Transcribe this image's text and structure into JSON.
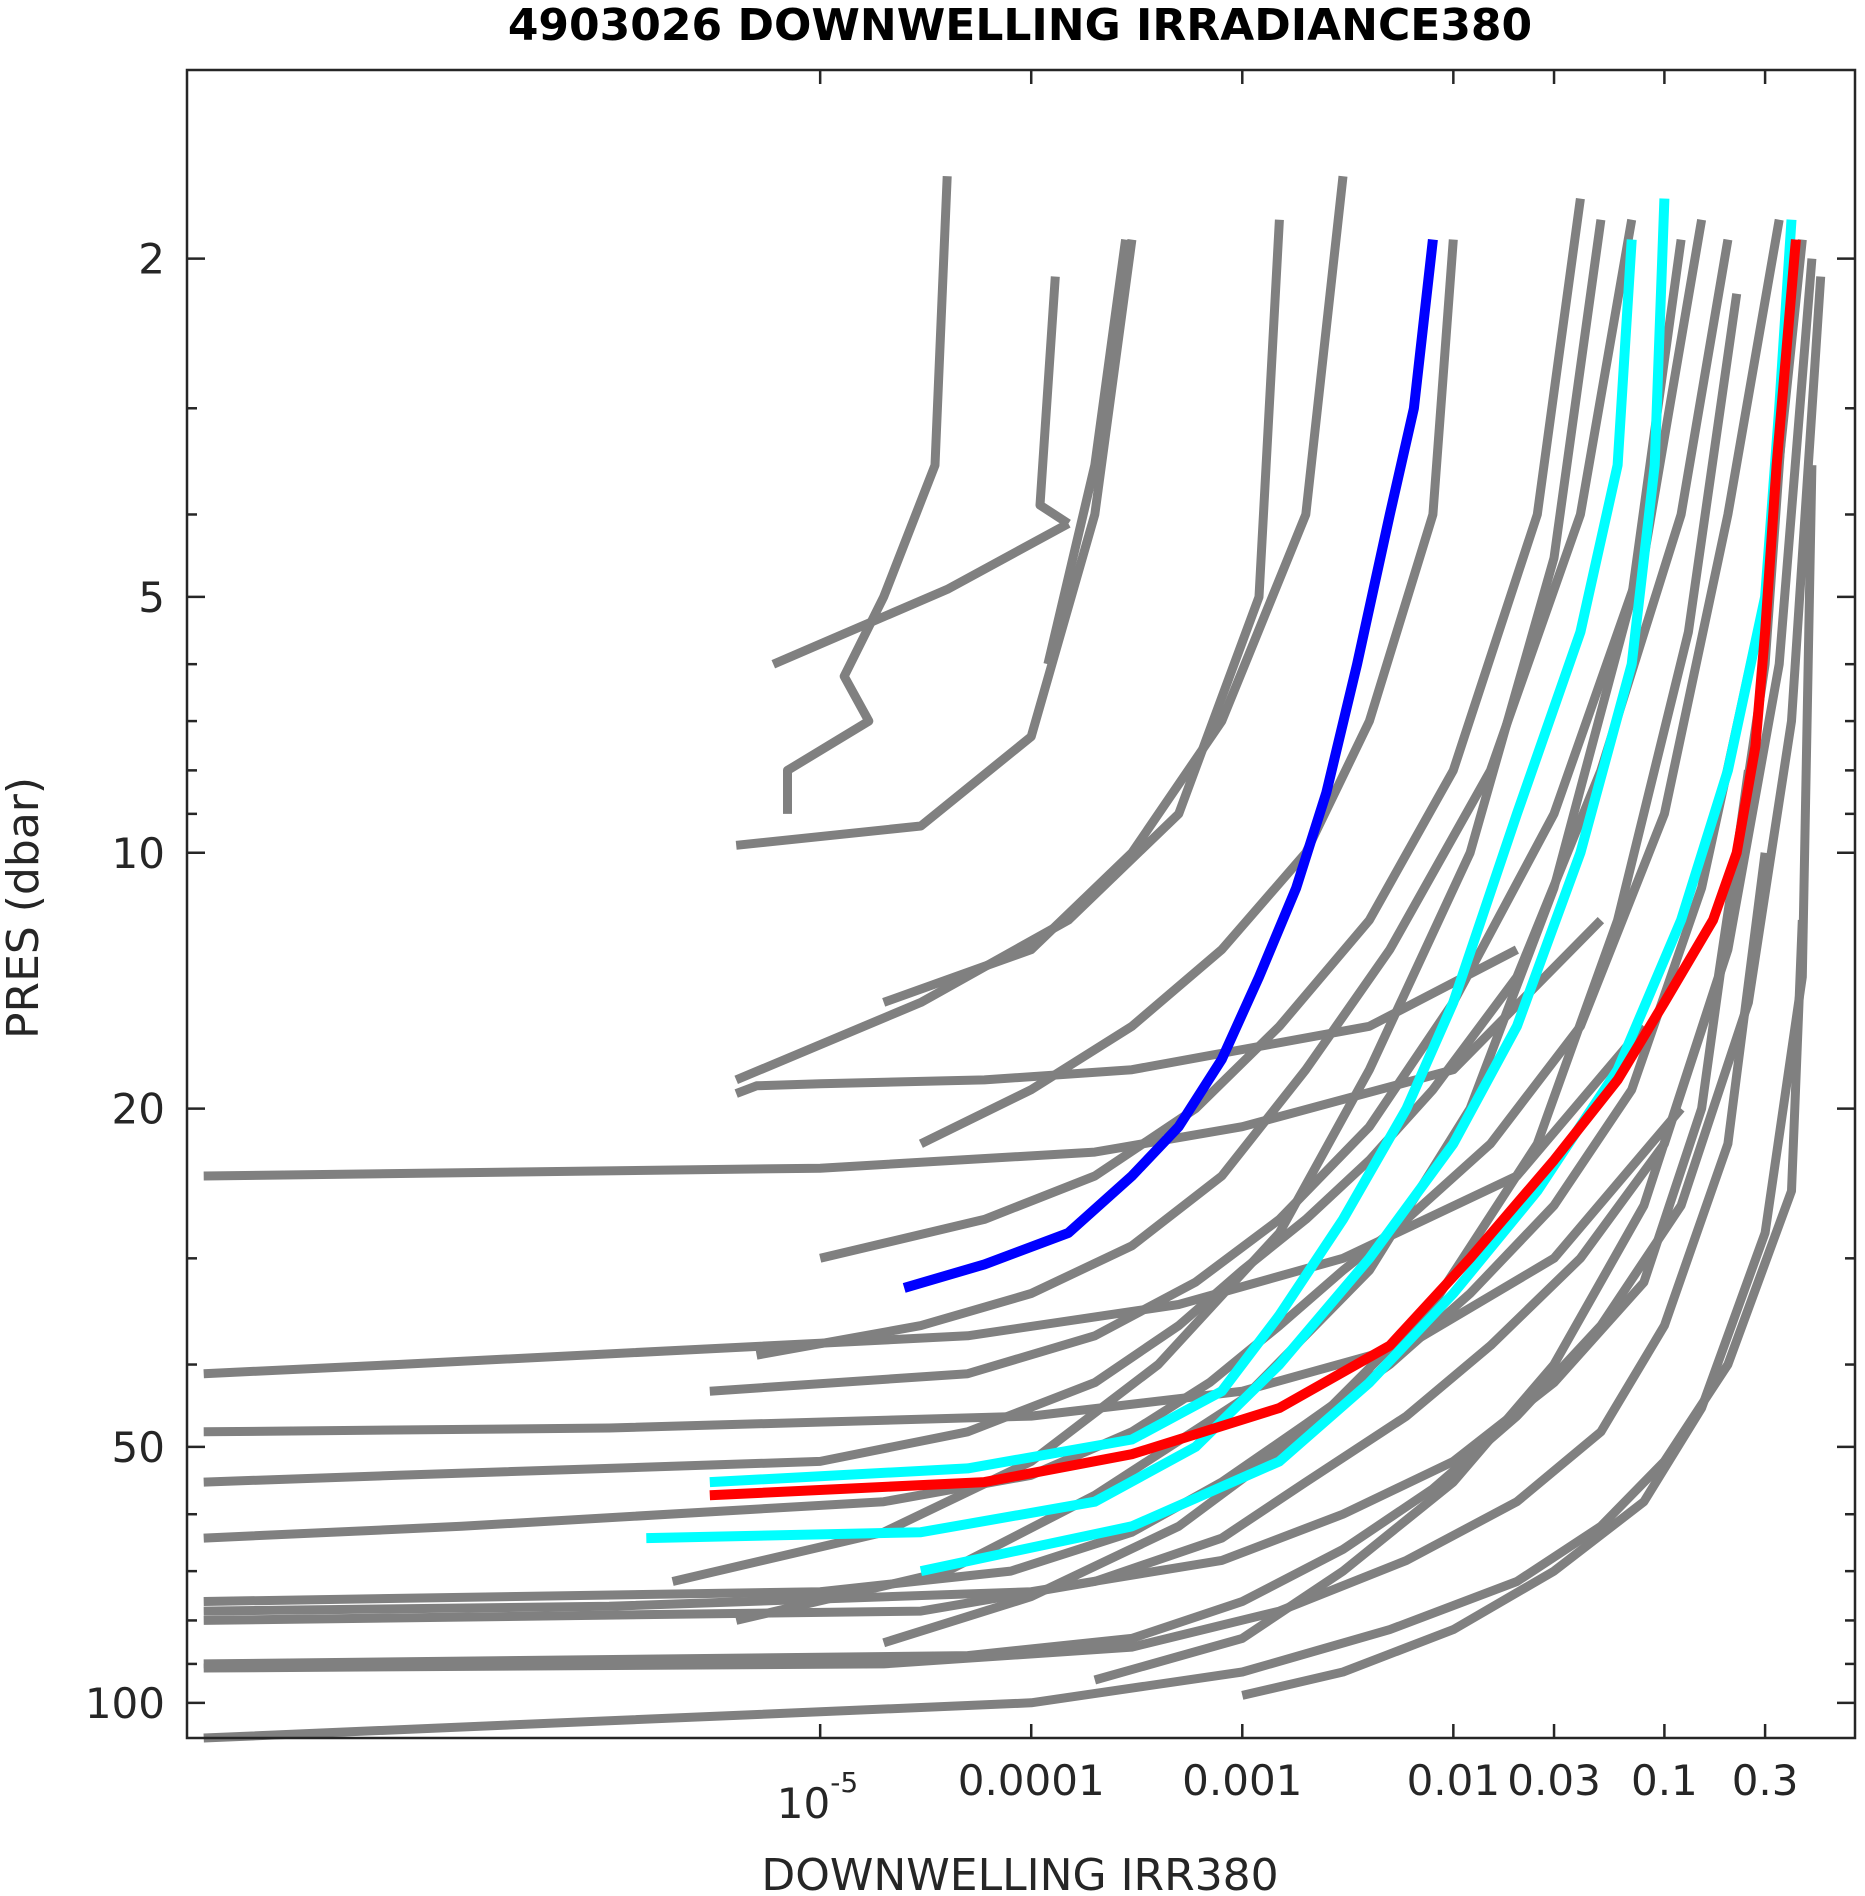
{
  "chart_data": {
    "type": "line",
    "title": "4903026  DOWNWELLING IRRADIANCE380",
    "xlabel": "DOWNWELLING IRR380",
    "ylabel": "PRES (dbar)",
    "xscale": "log",
    "yscale": "log",
    "yreversed": true,
    "xlim": [
      1e-08,
      0.8
    ],
    "ylim": [
      1.2,
      110
    ],
    "xticks": [
      {
        "value": 1e-05,
        "label": "10-5"
      },
      {
        "value": 0.0001,
        "label": "0.0001"
      },
      {
        "value": 0.001,
        "label": "0.001"
      },
      {
        "value": 0.01,
        "label": "0.01"
      },
      {
        "value": 0.03,
        "label": "0.03"
      },
      {
        "value": 0.1,
        "label": "0.1"
      },
      {
        "value": 0.3,
        "label": "0.3"
      }
    ],
    "yticks": [
      {
        "value": 2,
        "label": "2"
      },
      {
        "value": 5,
        "label": "5"
      },
      {
        "value": 10,
        "label": "10"
      },
      {
        "value": 20,
        "label": "20"
      },
      {
        "value": 50,
        "label": "50"
      },
      {
        "value": 100,
        "label": "100"
      }
    ],
    "grid": false,
    "legend": "none",
    "colors": {
      "background": "#ffffff",
      "gray": "#808080",
      "blue": "#0000ff",
      "cyan": "#00ffff",
      "red": "#ff0000",
      "axis": "#262626"
    },
    "gray_series": [
      {
        "x": [
          0.2,
          0.12,
          0.05,
          0.02,
          0.008,
          0.004,
          0.002,
          0.001,
          0.0005,
          0.0002,
          5e-05,
          1e-05,
          1e-07,
          1.2e-08
        ],
        "y": [
          1.9,
          4,
          8,
          14,
          19,
          23,
          27,
          31,
          36,
          42,
          48,
          52,
          54,
          55
        ]
      },
      {
        "x": [
          0.35,
          0.2,
          0.1,
          0.04,
          0.015,
          0.006,
          0.003,
          0.0015,
          0.0007,
          0.0003,
          0.0001,
          2e-05,
          2e-07,
          1.2e-08
        ],
        "y": [
          1.8,
          4,
          9,
          16,
          22,
          27,
          31,
          36,
          42,
          48,
          54,
          58,
          62,
          64
        ]
      },
      {
        "x": [
          0.45,
          0.3,
          0.15,
          0.07,
          0.03,
          0.012,
          0.005,
          0.002,
          0.0008,
          0.0003,
          8e-05,
          1e-05,
          1.2e-08
        ],
        "y": [
          1.9,
          5,
          11,
          19,
          26,
          33,
          40,
          47,
          55,
          63,
          70,
          74,
          76
        ]
      },
      {
        "x": [
          0.5,
          0.35,
          0.2,
          0.1,
          0.04,
          0.015,
          0.006,
          0.002,
          0.0008,
          0.0002,
          3e-05,
          1.2e-08
        ],
        "y": [
          2,
          6,
          13,
          22,
          30,
          38,
          46,
          55,
          64,
          72,
          78,
          80
        ]
      },
      {
        "x": [
          0.55,
          0.4,
          0.25,
          0.12,
          0.05,
          0.02,
          0.008,
          0.003,
          0.001,
          0.0003,
          5e-05,
          1.2e-08
        ],
        "y": [
          2.1,
          7,
          15,
          26,
          36,
          46,
          56,
          66,
          76,
          84,
          88,
          90
        ]
      },
      {
        "x": [
          0.15,
          0.08,
          0.03,
          0.01,
          0.004,
          0.0015,
          0.0006,
          0.0002,
          5e-05,
          3e-06
        ],
        "y": [
          1.8,
          4.5,
          9,
          15,
          21,
          27,
          32,
          37,
          41,
          43
        ]
      },
      {
        "x": [
          0.07,
          0.04,
          0.015,
          0.005,
          0.002,
          0.0008,
          0.0003,
          0.0001,
          3e-05,
          5e-06
        ],
        "y": [
          1.8,
          4,
          8,
          13,
          18,
          24,
          29,
          33,
          36,
          39
        ]
      },
      {
        "x": [
          0.04,
          0.025,
          0.01,
          0.004,
          0.0015,
          0.0006,
          0.0002,
          6e-05,
          1e-05
        ],
        "y": [
          1.7,
          4,
          8,
          12,
          16,
          20,
          24,
          27,
          30
        ]
      },
      {
        "x": [
          0.01,
          0.008,
          0.004,
          0.002,
          0.0008,
          0.0003,
          0.0001,
          3e-05
        ],
        "y": [
          1.9,
          4,
          7,
          10,
          13,
          16,
          19,
          22
        ]
      },
      {
        "x": [
          0.003,
          0.002,
          0.0008,
          0.0003,
          0.0001,
          2e-05
        ],
        "y": [
          1.6,
          4,
          7,
          10,
          13,
          15
        ]
      },
      {
        "x": [
          0.0015,
          0.0012,
          0.0005,
          0.00015,
          3e-05,
          4e-06
        ],
        "y": [
          1.8,
          5,
          9,
          12,
          15,
          18.5
        ]
      },
      {
        "x": [
          0.0003,
          0.0002,
          0.0001,
          3e-05,
          4e-06
        ],
        "y": [
          1.9,
          4,
          7.3,
          9.3,
          9.8
        ]
      },
      {
        "x": [
          0.00028,
          0.0002,
          0.00012
        ],
        "y": [
          1.9,
          3.5,
          6
        ]
      },
      {
        "x": [
          0.00013,
          0.00011,
          0.00015
        ],
        "y": [
          2.1,
          3.9,
          4.1
        ]
      },
      {
        "x": [
          0.00015,
          4e-05,
          6e-06
        ],
        "y": [
          4.1,
          4.9,
          6
        ]
      },
      {
        "x": [
          4e-05,
          3.5e-05,
          2e-05,
          1.3e-05,
          1.7e-05,
          7e-06,
          7e-06
        ],
        "y": [
          1.6,
          3.5,
          5.0,
          6.2,
          7.0,
          8.0,
          9.0
        ]
      },
      {
        "x": [
          0.02,
          0.004,
          0.0003,
          6e-05,
          1e-05,
          5e-06,
          4e-06
        ],
        "y": [
          13,
          16,
          18,
          18.5,
          18.7,
          18.8,
          19.2
        ]
      },
      {
        "x": [
          0.05,
          0.01,
          0.001,
          0.0002,
          1e-05,
          1.2e-08
        ],
        "y": [
          12,
          18,
          21,
          22.5,
          23.5,
          24
        ]
      },
      {
        "x": [
          0.08,
          0.02,
          0.003,
          0.0005,
          5e-05,
          1e-07,
          1.2e-08
        ],
        "y": [
          16,
          24,
          30,
          34,
          37,
          40,
          41
        ]
      },
      {
        "x": [
          0.12,
          0.03,
          0.006,
          0.001,
          0.0001,
          1e-06,
          1.2e-08
        ],
        "y": [
          20,
          30,
          38,
          43,
          46,
          47.5,
          48
        ]
      },
      {
        "x": [
          0.25,
          0.15,
          0.08,
          0.03,
          0.01,
          0.003,
          0.0008,
          0.0001,
          1e-06,
          1.2e-08
        ],
        "y": [
          8,
          20,
          32,
          42,
          52,
          60,
          68,
          74,
          77,
          78
        ]
      },
      {
        "x": [
          0.3,
          0.2,
          0.1,
          0.05,
          0.02,
          0.006,
          0.0015,
          0.0003,
          2e-05,
          1.2e-08
        ],
        "y": [
          10,
          22,
          36,
          48,
          58,
          68,
          78,
          86,
          90,
          91
        ]
      },
      {
        "x": [
          0.45,
          0.4,
          0.2,
          0.1,
          0.05,
          0.02,
          0.005,
          0.001,
          0.0001,
          1.2e-08
        ],
        "y": [
          12,
          25,
          40,
          52,
          62,
          72,
          82,
          92,
          100,
          110
        ]
      },
      {
        "x": [
          0.5,
          0.45,
          0.3,
          0.15,
          0.08,
          0.03,
          0.01,
          0.003,
          0.001
        ],
        "y": [
          3.5,
          14,
          28,
          45,
          58,
          70,
          82,
          92,
          98
        ]
      },
      {
        "x": [
          0.4,
          0.3,
          0.18,
          0.08,
          0.03,
          0.01,
          0.003,
          0.001,
          0.0002
        ],
        "y": [
          2.2,
          6,
          14,
          26,
          40,
          55,
          70,
          84,
          94
        ]
      },
      {
        "x": [
          0.22,
          0.13,
          0.06,
          0.025,
          0.008,
          0.002,
          0.0005,
          0.0001,
          2e-05
        ],
        "y": [
          2.2,
          5.5,
          12,
          22,
          34,
          48,
          62,
          75,
          85
        ]
      },
      {
        "x": [
          0.12,
          0.07,
          0.03,
          0.012,
          0.004,
          0.001,
          0.0002,
          4e-05,
          4e-06
        ],
        "y": [
          1.9,
          5,
          11,
          20,
          31,
          44,
          57,
          70,
          80
        ]
      },
      {
        "x": [
          0.05,
          0.03,
          0.012,
          0.004,
          0.0015,
          0.0004,
          0.0001,
          2e-05,
          2e-06
        ],
        "y": [
          1.8,
          4.5,
          10,
          18,
          28,
          40,
          52,
          63,
          72
        ]
      }
    ],
    "series": [
      {
        "color": "blue",
        "x": [
          0.008,
          0.0065,
          0.005,
          0.0035,
          0.0025,
          0.0018,
          0.0012,
          0.0008,
          0.0005,
          0.0003,
          0.00015,
          6e-05,
          2.5e-05
        ],
        "y": [
          1.9,
          3,
          4,
          6,
          8.5,
          11,
          14,
          17.5,
          21,
          24,
          28,
          30.5,
          32.5
        ]
      },
      {
        "color": "cyan",
        "x": [
          0.07,
          0.06,
          0.04,
          0.02,
          0.01,
          0.006,
          0.003,
          0.0015,
          0.0008,
          0.0003,
          5e-05,
          3e-06
        ],
        "y": [
          1.9,
          3.5,
          5.5,
          9,
          15,
          20,
          27,
          35,
          43,
          49,
          53,
          55
        ]
      },
      {
        "color": "cyan",
        "x": [
          0.1,
          0.09,
          0.07,
          0.04,
          0.02,
          0.01,
          0.004,
          0.0015,
          0.0006,
          0.0002,
          3e-05,
          1.5e-06
        ],
        "y": [
          1.7,
          3.5,
          6,
          10,
          16,
          22,
          30,
          40,
          50,
          58,
          63,
          64
        ]
      },
      {
        "color": "cyan",
        "x": [
          0.4,
          0.35,
          0.3,
          0.2,
          0.12,
          0.06,
          0.025,
          0.01,
          0.004,
          0.0015,
          0.0003,
          3e-05
        ],
        "y": [
          1.8,
          3,
          5,
          8,
          12,
          18,
          25,
          33,
          42,
          52,
          62,
          70
        ]
      },
      {
        "color": "red",
        "x": [
          0.42,
          0.34,
          0.3,
          0.27,
          0.22,
          0.17,
          0.1,
          0.06,
          0.03,
          0.012,
          0.005,
          0.0015,
          0.0003,
          6e-05,
          3e-06
        ],
        "y": [
          1.9,
          3.5,
          5.5,
          7.5,
          10,
          12,
          15,
          18.5,
          23,
          30,
          38,
          45,
          51,
          55,
          57
        ]
      }
    ]
  }
}
